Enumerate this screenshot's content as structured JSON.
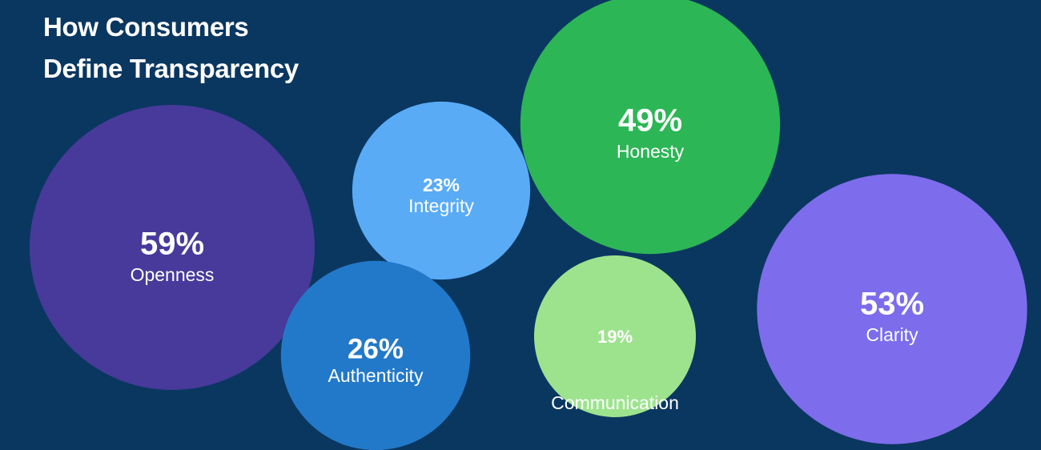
{
  "chart_data": {
    "type": "bubble",
    "title_lines": [
      "How Consumers",
      "Define Transparency"
    ],
    "bubbles": [
      {
        "label": "Openness",
        "value": 59,
        "value_text": "59%",
        "color": "#473a9b"
      },
      {
        "label": "Integrity",
        "value": 23,
        "value_text": "23%",
        "color": "#59abf6"
      },
      {
        "label": "Honesty",
        "value": 49,
        "value_text": "49%",
        "color": "#2cb655"
      },
      {
        "label": "Authenticity",
        "value": 26,
        "value_text": "26%",
        "color": "#2279c9"
      },
      {
        "label": "Communication",
        "value": 19,
        "value_text": "19%",
        "color": "#9de38e"
      },
      {
        "label": "Clarity",
        "value": 53,
        "value_text": "53%",
        "color": "#7d6cec"
      }
    ]
  },
  "colors": {
    "background": "#0a3760",
    "text": "#ffffff"
  }
}
